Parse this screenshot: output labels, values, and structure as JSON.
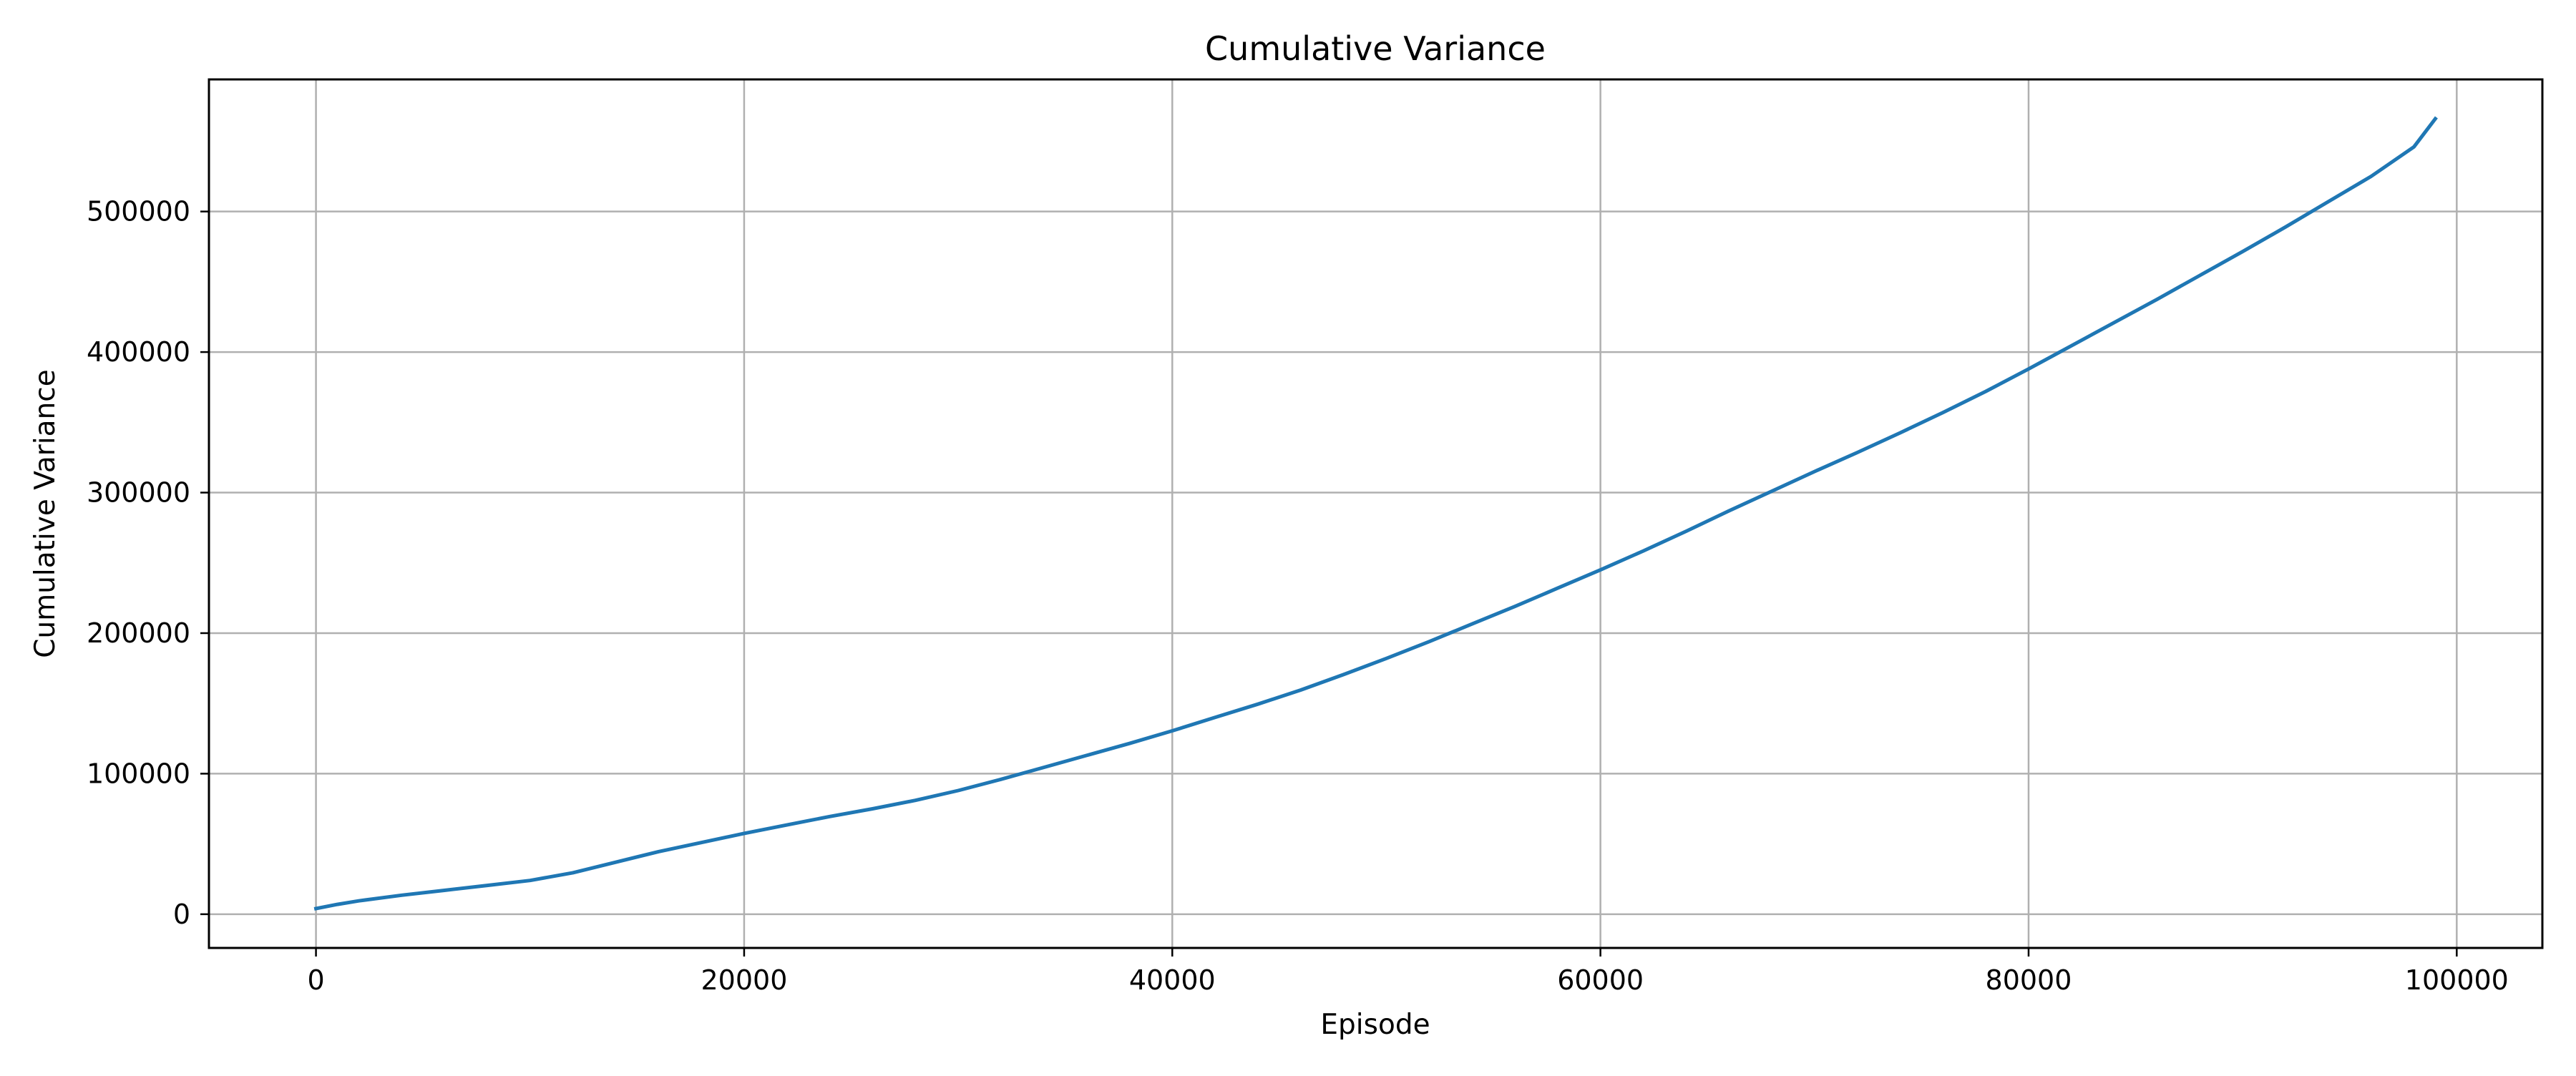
{
  "chart_data": {
    "type": "line",
    "title": "Cumulative Variance",
    "xlabel": "Episode",
    "ylabel": "Cumulative Variance",
    "xlim": [
      -5000,
      104000
    ],
    "ylim": [
      -24000,
      594000
    ],
    "xticks": [
      0,
      20000,
      40000,
      60000,
      80000,
      100000
    ],
    "yticks": [
      0,
      100000,
      200000,
      300000,
      400000,
      500000
    ],
    "xtick_labels": [
      "0",
      "20000",
      "40000",
      "60000",
      "80000",
      "100000"
    ],
    "ytick_labels": [
      "0",
      "100000",
      "200000",
      "300000",
      "400000",
      "500000"
    ],
    "grid": true,
    "legend": "none",
    "series": [
      {
        "color": "#1f77b4",
        "x": [
          0,
          1000,
          2000,
          4000,
          6000,
          8000,
          10000,
          12000,
          14000,
          16000,
          18000,
          20000,
          22000,
          24000,
          26000,
          28000,
          30000,
          32000,
          34000,
          36000,
          38000,
          40000,
          42000,
          44000,
          46000,
          48000,
          50000,
          52000,
          54000,
          56000,
          58000,
          60000,
          62000,
          64000,
          66000,
          68000,
          70000,
          72000,
          74000,
          76000,
          78000,
          80000,
          82000,
          84000,
          86000,
          88000,
          90000,
          92000,
          94000,
          96000,
          98000,
          99000
        ],
        "y": [
          4000,
          7000,
          9500,
          13500,
          17000,
          20500,
          24000,
          29500,
          37000,
          44500,
          51000,
          57500,
          63500,
          69500,
          75000,
          81000,
          88000,
          96000,
          104500,
          113000,
          121500,
          130500,
          140000,
          149500,
          159500,
          170500,
          182000,
          194000,
          206500,
          219000,
          232000,
          245000,
          258500,
          272500,
          287000,
          301000,
          315000,
          328500,
          342500,
          357000,
          372000,
          388000,
          404500,
          421000,
          437500,
          454500,
          471500,
          489000,
          507000,
          525000,
          546000,
          566000
        ]
      }
    ]
  }
}
